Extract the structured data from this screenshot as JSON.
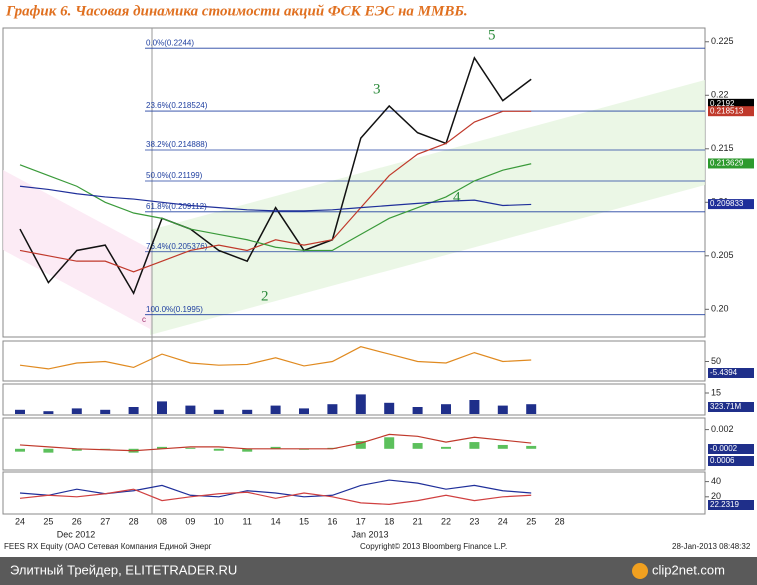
{
  "header": {
    "title": "График 6.   Часовая динамика стоимости акций ФСК ЕЭС на ММВБ."
  },
  "chart_data": [
    {
      "type": "line",
      "categories": [
        "24",
        "25",
        "26",
        "27",
        "28",
        "08",
        "09",
        "10",
        "11",
        "14",
        "15",
        "16",
        "17",
        "18",
        "21",
        "22",
        "23",
        "24",
        "25",
        "28"
      ],
      "category_groups": [
        "Dec 2012",
        "Jan 2013"
      ],
      "ylim": [
        0.1976,
        0.2261
      ],
      "yticks": [
        {
          "value": 0.2,
          "label": "0.20"
        },
        0.205,
        0.21,
        0.215,
        0.22,
        0.225
      ],
      "series": [
        {
          "color": "#111111",
          "values": [
            0.2075,
            0.2025,
            0.2055,
            0.206,
            0.2015,
            0.2085,
            0.2075,
            0.2055,
            0.2045,
            0.2095,
            0.2055,
            0.2065,
            0.216,
            0.219,
            0.2165,
            0.2155,
            0.2235,
            0.2195,
            0.2215,
            null
          ]
        },
        {
          "color": "#c0392b",
          "values": [
            0.2055,
            0.205,
            0.2045,
            0.2045,
            0.2035,
            0.2045,
            0.2055,
            0.206,
            0.2055,
            0.2065,
            0.206,
            0.2065,
            0.2095,
            0.2125,
            0.2145,
            0.2155,
            0.2175,
            0.2185,
            0.2185,
            null
          ]
        },
        {
          "color": "#3a9a3a",
          "values": [
            0.2135,
            0.2125,
            0.2115,
            0.21,
            0.209,
            0.2085,
            0.2075,
            0.207,
            0.2065,
            0.2058,
            0.2055,
            0.2055,
            0.207,
            0.2085,
            0.2095,
            0.2105,
            0.212,
            0.213,
            0.2136,
            null
          ]
        },
        {
          "color": "#1f2f9a",
          "values": [
            0.2115,
            0.2112,
            0.2108,
            0.2105,
            0.2103,
            0.21,
            0.2097,
            0.2095,
            0.2093,
            0.2092,
            0.2092,
            0.2093,
            0.2095,
            0.2097,
            0.2099,
            0.2101,
            0.2102,
            0.2097,
            0.2098,
            null
          ]
        }
      ],
      "levels": [
        {
          "label": "0.0%(0.2244)",
          "value": 0.2244
        },
        {
          "label": "23.6%(0.218524)",
          "value": 0.218524
        },
        {
          "label": "38.2%(0.214888)",
          "value": 0.214888
        },
        {
          "label": "50.0%(0.21199)",
          "value": 0.21199
        },
        {
          "label": "61.8%(0.209112)",
          "value": 0.209112
        },
        {
          "label": "76.4%(0.205376)",
          "value": 0.205376
        },
        {
          "label": "100.0%(0.1995)",
          "value": 0.1995
        }
      ],
      "level_color": "#2040a0",
      "price_tags": [
        {
          "value": 0.2192,
          "color": "#000000"
        },
        {
          "value": 0.218513,
          "color": "#c0392b"
        },
        {
          "value": 0.213629,
          "color": "#2e9a2e"
        },
        {
          "value": 0.209833,
          "color": "#1f2f9a"
        }
      ],
      "wave_labels": [
        "2",
        "3",
        "4",
        "5",
        "c"
      ]
    },
    {
      "type": "line",
      "ylim": [
        25,
        75
      ],
      "yticks": [
        50
      ],
      "series": [
        {
          "color": "#e08a20",
          "values": [
            45,
            40,
            48,
            50,
            42,
            60,
            48,
            45,
            46,
            55,
            44,
            50,
            70,
            60,
            50,
            48,
            62,
            50,
            52,
            null
          ]
        }
      ],
      "tags": [
        -5.4394
      ]
    },
    {
      "type": "bar",
      "ylim": [
        0,
        20
      ],
      "yticks": [
        15
      ],
      "color": "#1f2f8a",
      "values": [
        3,
        2,
        4,
        3,
        5,
        9,
        6,
        3,
        3,
        6,
        4,
        7,
        14,
        8,
        5,
        7,
        10,
        6,
        7,
        null
      ],
      "tags": [
        "323.71M"
      ]
    },
    {
      "type": "bar",
      "ylim": [
        -0.002,
        0.003
      ],
      "yticks": [
        0.002
      ],
      "color": "#5cc05c",
      "values": [
        -0.0003,
        -0.0004,
        -0.0002,
        0,
        -0.0004,
        0.0002,
        0.0001,
        -0.0002,
        -0.0003,
        0.0002,
        -0.0001,
        0.0001,
        0.0008,
        0.0012,
        0.0006,
        0.0002,
        0.0007,
        0.0004,
        0.0003,
        null
      ],
      "series": [
        {
          "color": "#c0392b",
          "values": [
            0.0004,
            0.0002,
            0,
            -0.0001,
            -0.0002,
            0,
            0.0002,
            0.0002,
            0,
            0,
            0,
            0,
            0.0006,
            0.0015,
            0.0013,
            0.0007,
            0.0012,
            0.0009,
            0.0006,
            null
          ]
        }
      ],
      "tags": [
        0.0006,
        -0.0002
      ]
    },
    {
      "type": "line",
      "ylim": [
        0,
        50
      ],
      "yticks": [
        40,
        20
      ],
      "series": [
        {
          "color": "#1f2f9a",
          "values": [
            25,
            22,
            30,
            24,
            28,
            35,
            22,
            20,
            28,
            25,
            20,
            22,
            35,
            42,
            38,
            30,
            35,
            28,
            25,
            null
          ]
        },
        {
          "color": "#d04040",
          "values": [
            18,
            22,
            20,
            24,
            30,
            15,
            20,
            24,
            26,
            18,
            25,
            20,
            12,
            10,
            15,
            22,
            15,
            20,
            22,
            null
          ]
        }
      ],
      "tags": [
        22.2319
      ]
    }
  ],
  "footer": {
    "left": "FEES RX Equity (OAO Сетевая Компания Единой Энерг",
    "center": "Copyright© 2013 Bloomberg Finance L.P.",
    "right": "28-Jan-2013 08:48:32"
  },
  "banner": {
    "left": "Элитный Трейдер, ELITETRADER.RU",
    "right": "clip2net.com"
  }
}
